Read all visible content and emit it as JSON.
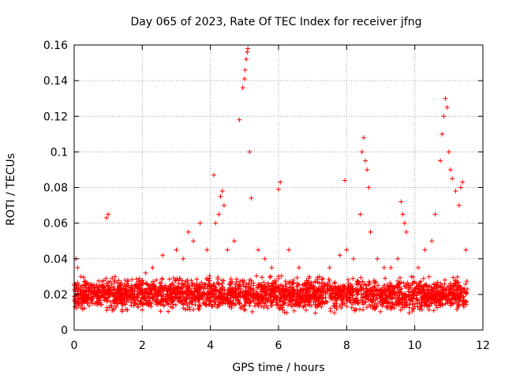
{
  "chart_data": {
    "type": "scatter",
    "title": "Day 065 of 2023, Rate Of TEC Index for receiver jfng",
    "xlabel": "GPS time / hours",
    "ylabel": "ROTI / TECUs",
    "xlim": [
      0,
      12
    ],
    "ylim": [
      0,
      0.16
    ],
    "xticks": [
      "0",
      "2",
      "4",
      "6",
      "8",
      "10",
      "12"
    ],
    "yticks": [
      "0",
      "0.02",
      "0.04",
      "0.06",
      "0.08",
      "0.1",
      "0.12",
      "0.14",
      "0.16"
    ],
    "grid": true,
    "marker": "+",
    "color": "#ff0000",
    "series": [
      {
        "name": "ROTI",
        "x": [
          0.05,
          0.1,
          0.2,
          0.35,
          0.5,
          0.7,
          0.95,
          1.0,
          1.2,
          1.5,
          1.8,
          2.1,
          2.3,
          2.6,
          3.0,
          3.2,
          3.35,
          3.5,
          3.7,
          3.9,
          4.1,
          4.15,
          4.25,
          4.3,
          4.35,
          4.4,
          4.5,
          4.7,
          4.85,
          4.95,
          5.0,
          5.02,
          5.05,
          5.08,
          5.1,
          5.15,
          5.2,
          5.4,
          5.6,
          5.8,
          6.0,
          6.05,
          6.3,
          6.6,
          6.9,
          7.2,
          7.5,
          7.8,
          7.95,
          8.0,
          8.2,
          8.4,
          8.45,
          8.5,
          8.55,
          8.6,
          8.65,
          8.7,
          8.9,
          9.1,
          9.3,
          9.5,
          9.6,
          9.65,
          9.7,
          9.75,
          9.9,
          10.1,
          10.3,
          10.5,
          10.6,
          10.75,
          10.8,
          10.85,
          10.9,
          10.95,
          11.0,
          11.05,
          11.1,
          11.2,
          11.3,
          11.35,
          11.4,
          11.5
        ],
        "y": [
          0.04,
          0.035,
          0.03,
          0.025,
          0.02,
          0.022,
          0.063,
          0.065,
          0.03,
          0.028,
          0.025,
          0.032,
          0.035,
          0.042,
          0.045,
          0.04,
          0.055,
          0.05,
          0.06,
          0.045,
          0.087,
          0.06,
          0.065,
          0.075,
          0.078,
          0.07,
          0.045,
          0.05,
          0.118,
          0.136,
          0.141,
          0.146,
          0.152,
          0.156,
          0.158,
          0.1,
          0.074,
          0.045,
          0.04,
          0.035,
          0.079,
          0.083,
          0.045,
          0.035,
          0.03,
          0.03,
          0.035,
          0.042,
          0.084,
          0.045,
          0.04,
          0.065,
          0.1,
          0.108,
          0.095,
          0.09,
          0.08,
          0.055,
          0.04,
          0.035,
          0.035,
          0.04,
          0.072,
          0.065,
          0.06,
          0.055,
          0.03,
          0.035,
          0.045,
          0.05,
          0.065,
          0.095,
          0.11,
          0.12,
          0.13,
          0.125,
          0.1,
          0.09,
          0.085,
          0.078,
          0.07,
          0.08,
          0.083,
          0.045
        ]
      }
    ],
    "noise_band": {
      "description": "dense base band of background ROTI values",
      "x_range": [
        0,
        11.55
      ],
      "y_range": [
        0.008,
        0.032
      ],
      "count": 2600
    }
  }
}
